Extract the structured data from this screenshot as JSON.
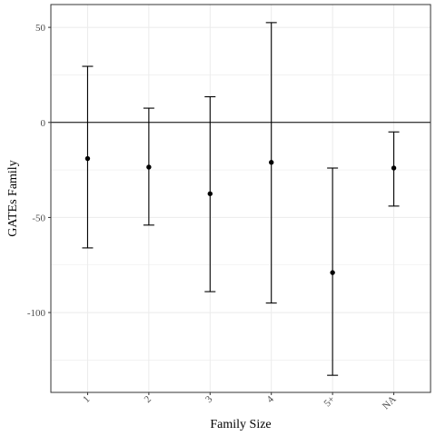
{
  "chart_data": {
    "type": "errorbar",
    "title": "",
    "xlabel": "Family Size",
    "ylabel": "GATEs Family",
    "categories": [
      "1",
      "2",
      "3",
      "4",
      "5+",
      "NA"
    ],
    "estimates": [
      -19,
      -23.5,
      -37.5,
      -21,
      -79,
      -24
    ],
    "lower": [
      -66,
      -54,
      -89,
      -95,
      -133,
      -44
    ],
    "upper": [
      29.5,
      7.5,
      13.5,
      52.5,
      -24,
      -5
    ],
    "ylim": [
      -142,
      62
    ],
    "yticks": [
      -100,
      -50,
      0,
      50
    ],
    "hline": 0,
    "grid": true,
    "legend": "none",
    "colors": {
      "points": "#000000",
      "grid": "#ebebeb",
      "border": "#333333"
    }
  }
}
